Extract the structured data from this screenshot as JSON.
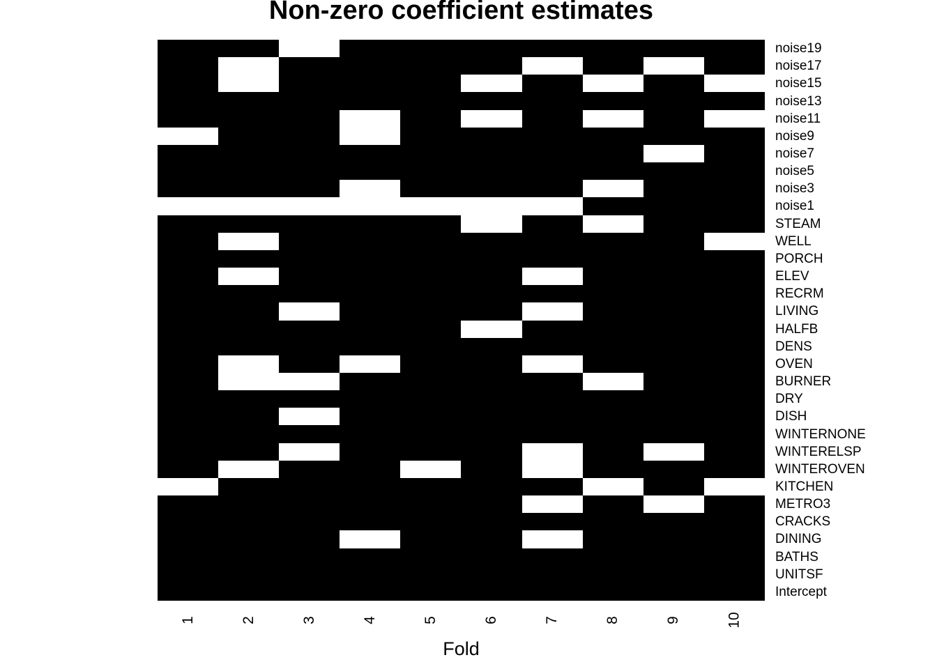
{
  "title": "Non-zero coefficient estimates",
  "chart_data": {
    "type": "heatmap",
    "title": "Non-zero coefficient estimates",
    "xlabel": "Fold",
    "ylabel": "",
    "legend": "none",
    "grid": "off",
    "x_tick_label_rotation_deg": 90,
    "colors": {
      "nonzero": "#000000",
      "zero": "#ffffff",
      "background": "#ffffff"
    },
    "value_meaning": "1 = non-zero coefficient estimate (black cell), 0 = zero coefficient (white cell)",
    "x_categories": [
      "1",
      "2",
      "3",
      "4",
      "5",
      "6",
      "7",
      "8",
      "9",
      "10"
    ],
    "y_categories_top_to_bottom": [
      "noise19",
      "noise17",
      "noise15",
      "noise13",
      "noise11",
      "noise9",
      "noise7",
      "noise5",
      "noise3",
      "noise1",
      "STEAM",
      "WELL",
      "PORCH",
      "ELEV",
      "RECRM",
      "LIVING",
      "HALFB",
      "DENS",
      "OVEN",
      "BURNER",
      "DRY",
      "DISH",
      "WINTERNONE",
      "WINTERELSP",
      "WINTEROVEN",
      "KITCHEN",
      "METRO3",
      "CRACKS",
      "DINING",
      "BATHS",
      "UNITSF",
      "Intercept"
    ],
    "matrix": [
      [
        1,
        1,
        0,
        1,
        1,
        1,
        1,
        1,
        1,
        1
      ],
      [
        1,
        0,
        1,
        1,
        1,
        1,
        0,
        1,
        0,
        1
      ],
      [
        1,
        0,
        1,
        1,
        1,
        0,
        1,
        0,
        1,
        0
      ],
      [
        1,
        1,
        1,
        1,
        1,
        1,
        1,
        1,
        1,
        1
      ],
      [
        1,
        1,
        1,
        0,
        1,
        0,
        1,
        0,
        1,
        0
      ],
      [
        0,
        1,
        1,
        0,
        1,
        1,
        1,
        1,
        1,
        1
      ],
      [
        1,
        1,
        1,
        1,
        1,
        1,
        1,
        1,
        0,
        1
      ],
      [
        1,
        1,
        1,
        1,
        1,
        1,
        1,
        1,
        1,
        1
      ],
      [
        1,
        1,
        1,
        0,
        1,
        1,
        1,
        0,
        1,
        1
      ],
      [
        0,
        0,
        0,
        0,
        0,
        0,
        0,
        1,
        1,
        1
      ],
      [
        1,
        1,
        1,
        1,
        1,
        0,
        1,
        0,
        1,
        1
      ],
      [
        1,
        0,
        1,
        1,
        1,
        1,
        1,
        1,
        1,
        0
      ],
      [
        1,
        1,
        1,
        1,
        1,
        1,
        1,
        1,
        1,
        1
      ],
      [
        1,
        0,
        1,
        1,
        1,
        1,
        0,
        1,
        1,
        1
      ],
      [
        1,
        1,
        1,
        1,
        1,
        1,
        1,
        1,
        1,
        1
      ],
      [
        1,
        1,
        0,
        1,
        1,
        1,
        0,
        1,
        1,
        1
      ],
      [
        1,
        1,
        1,
        1,
        1,
        0,
        1,
        1,
        1,
        1
      ],
      [
        1,
        1,
        1,
        1,
        1,
        1,
        1,
        1,
        1,
        1
      ],
      [
        1,
        0,
        1,
        0,
        1,
        1,
        0,
        1,
        1,
        1
      ],
      [
        1,
        0,
        0,
        1,
        1,
        1,
        1,
        0,
        1,
        1
      ],
      [
        1,
        1,
        1,
        1,
        1,
        1,
        1,
        1,
        1,
        1
      ],
      [
        1,
        1,
        0,
        1,
        1,
        1,
        1,
        1,
        1,
        1
      ],
      [
        1,
        1,
        1,
        1,
        1,
        1,
        1,
        1,
        1,
        1
      ],
      [
        1,
        1,
        0,
        1,
        1,
        1,
        0,
        1,
        0,
        1
      ],
      [
        1,
        0,
        1,
        1,
        0,
        1,
        0,
        1,
        1,
        1
      ],
      [
        0,
        1,
        1,
        1,
        1,
        1,
        1,
        0,
        1,
        0
      ],
      [
        1,
        1,
        1,
        1,
        1,
        1,
        0,
        1,
        0,
        1
      ],
      [
        1,
        1,
        1,
        1,
        1,
        1,
        1,
        1,
        1,
        1
      ],
      [
        1,
        1,
        1,
        0,
        1,
        1,
        0,
        1,
        1,
        1
      ],
      [
        1,
        1,
        1,
        1,
        1,
        1,
        1,
        1,
        1,
        1
      ],
      [
        1,
        1,
        1,
        1,
        1,
        1,
        1,
        1,
        1,
        1
      ],
      [
        1,
        1,
        1,
        1,
        1,
        1,
        1,
        1,
        1,
        1
      ]
    ]
  }
}
